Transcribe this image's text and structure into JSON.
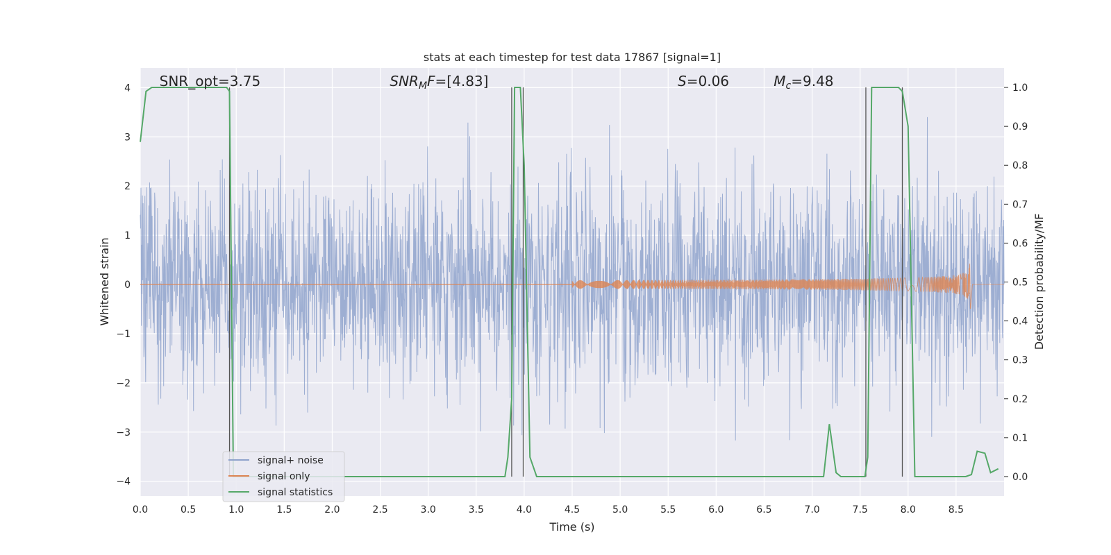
{
  "chart_data": {
    "type": "line",
    "title": "stats at each timestep for test data 17867 [signal=1]",
    "xlabel": "Time (s)",
    "ylabel": "Whitened strain",
    "y2label": "Detection probability/MF",
    "xlim": [
      0,
      9
    ],
    "ylim": [
      -4.3,
      4.4
    ],
    "y2lim": [
      -0.05,
      1.05
    ],
    "xticks": [
      "0.0",
      "0.5",
      "1.0",
      "1.5",
      "2.0",
      "2.5",
      "3.0",
      "3.5",
      "4.0",
      "4.5",
      "5.0",
      "5.5",
      "6.0",
      "6.5",
      "7.0",
      "7.5",
      "8.0",
      "8.5"
    ],
    "yticks": [
      "4",
      "3",
      "2",
      "1",
      "0",
      "−1",
      "−2",
      "−3",
      "−4"
    ],
    "y2ticks": [
      "1.0",
      "0.9",
      "0.8",
      "0.7",
      "0.6",
      "0.5",
      "0.4",
      "0.3",
      "0.2",
      "0.1",
      "0.0"
    ],
    "annotations": [
      {
        "text": "SNR_opt=3.75",
        "x": 0.2
      },
      {
        "text": "SNR",
        "sub": "M",
        "rest": "F=[4.83]",
        "italic": true,
        "x": 2.6
      },
      {
        "text": "S",
        "rest": "=0.06",
        "italic": true,
        "x": 5.6
      },
      {
        "text": "M",
        "sub": "c",
        "rest": "=9.48",
        "italic": true,
        "x": 6.6
      }
    ],
    "legend": {
      "placement": "lower-left",
      "entries": [
        "signal+ noise",
        "signal only",
        "signal statistics"
      ]
    },
    "series": [
      {
        "name": "signal+ noise",
        "color": "#8fa3cc",
        "kind": "noise",
        "envelope_std": 1.0
      },
      {
        "name": "signal only",
        "color": "#dd8452",
        "kind": "chirp",
        "t_merge": 8.65,
        "peak_amp": 0.7
      },
      {
        "name": "signal statistics",
        "color": "#55a868",
        "kind": "line",
        "x": [
          0.0,
          0.06,
          0.12,
          0.2,
          0.9,
          0.93,
          0.97,
          1.0,
          1.1,
          3.5,
          3.8,
          3.83,
          3.87,
          3.9,
          3.96,
          4.0,
          4.06,
          4.13,
          4.2,
          7.05,
          7.12,
          7.18,
          7.25,
          7.3,
          7.5,
          7.55,
          7.58,
          7.62,
          7.9,
          7.94,
          8.0,
          8.07,
          8.15,
          8.6,
          8.66,
          8.72,
          8.8,
          8.86,
          8.94
        ],
        "y": [
          0.86,
          0.99,
          1.0,
          1.0,
          1.0,
          0.99,
          0.0,
          0.0,
          0.0,
          0.0,
          0.0,
          0.05,
          0.2,
          1.0,
          1.0,
          0.8,
          0.05,
          0.0,
          0.0,
          0.0,
          0.0,
          0.135,
          0.01,
          0.0,
          0.0,
          0.0,
          0.05,
          1.0,
          1.0,
          0.99,
          0.9,
          0.0,
          0.0,
          0.0,
          0.005,
          0.065,
          0.06,
          0.01,
          0.02
        ]
      }
    ],
    "vertical_markers": [
      0.93,
      3.87,
      3.99,
      7.56,
      7.94
    ],
    "marker_color": "#555555",
    "background": "#eaeaf2",
    "grid": true
  }
}
